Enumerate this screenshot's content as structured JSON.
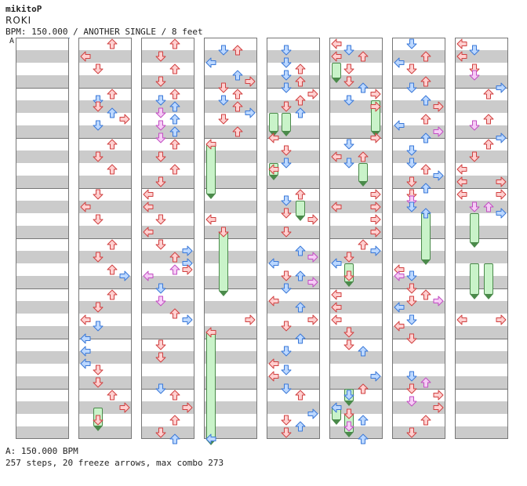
{
  "header": {
    "artist": "mikitoP",
    "title": "ROKI",
    "info": "BPM: 150.000 / ANOTHER SINGLE / 8 feet",
    "speed_marker": "A"
  },
  "footer": {
    "bpm_line": "A: 150.000 BPM",
    "stats": "257 steps, 20 freeze arrows, max combo 273"
  },
  "colors": {
    "red_arrow_fill": "#ffd0d0",
    "red_arrow_stroke": "#d04040",
    "blue_arrow_fill": "#bcd8ff",
    "blue_arrow_stroke": "#3a78d8",
    "pink_arrow_fill": "#f6ccf6",
    "pink_arrow_stroke": "#c24ec2",
    "freeze_fill": "#c9f3c9",
    "freeze_stroke": "#4a8a4a",
    "band_gray": "#cbcbcb"
  },
  "chart": {
    "measure_count": 64,
    "freeze_count": 20
  }
}
